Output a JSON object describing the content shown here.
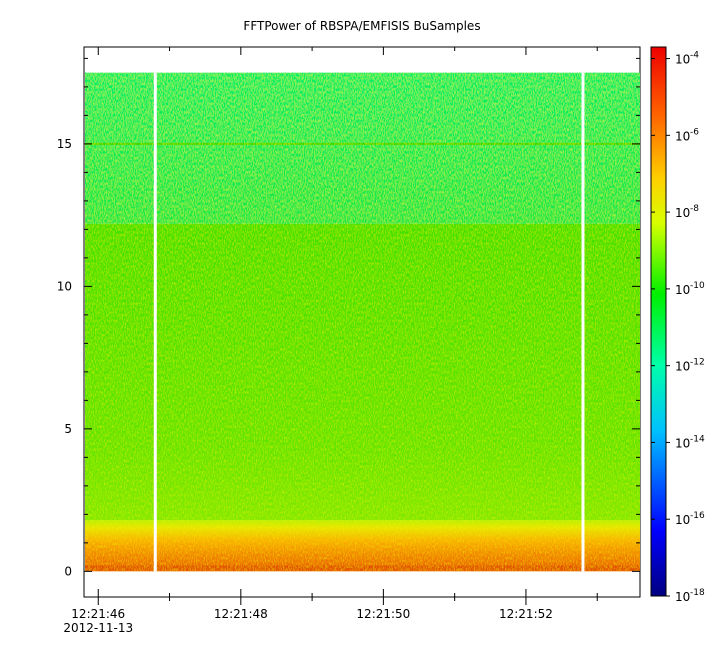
{
  "chart_data": {
    "type": "heatmap",
    "title": "FFTPower of RBSPA/EMFISIS  BuSamples",
    "xlabel": "",
    "ylabel": "",
    "x_ticks": [
      {
        "label": "12:21:46",
        "sublabel": "2012-11-13"
      },
      {
        "label": "12:21:48",
        "sublabel": ""
      },
      {
        "label": "12:21:50",
        "sublabel": ""
      },
      {
        "label": "12:21:52",
        "sublabel": ""
      }
    ],
    "xlim_seconds_label": [
      "12:21:45.8",
      "12:21:53.6"
    ],
    "y_ticks": [
      0,
      5,
      10,
      15
    ],
    "ylim": [
      -0.9,
      18.4
    ],
    "data_ylim": [
      0,
      17.5
    ],
    "colorbar": {
      "scale": "log",
      "base": "10",
      "exponents": [
        "-4",
        "-6",
        "-8",
        "-10",
        "-12",
        "-14",
        "-16",
        "-18"
      ],
      "range": [
        1e-18,
        0.0002
      ]
    },
    "frequency_bands": [
      {
        "y_from": 0,
        "y_to": 0.5,
        "power": 2e-07
      },
      {
        "y_from": 0.5,
        "y_to": 1.8,
        "power": 1e-08
      },
      {
        "y_from": 1.8,
        "y_to": 12.2,
        "power": 1e-10
      },
      {
        "y_from": 12.2,
        "y_to": 17.5,
        "power": 1e-11
      }
    ],
    "line_feature": {
      "y": 15.0,
      "power": 1e-10
    },
    "data_gaps_time_labels": [
      "12:21:46.8",
      "12:21:52.8"
    ]
  }
}
